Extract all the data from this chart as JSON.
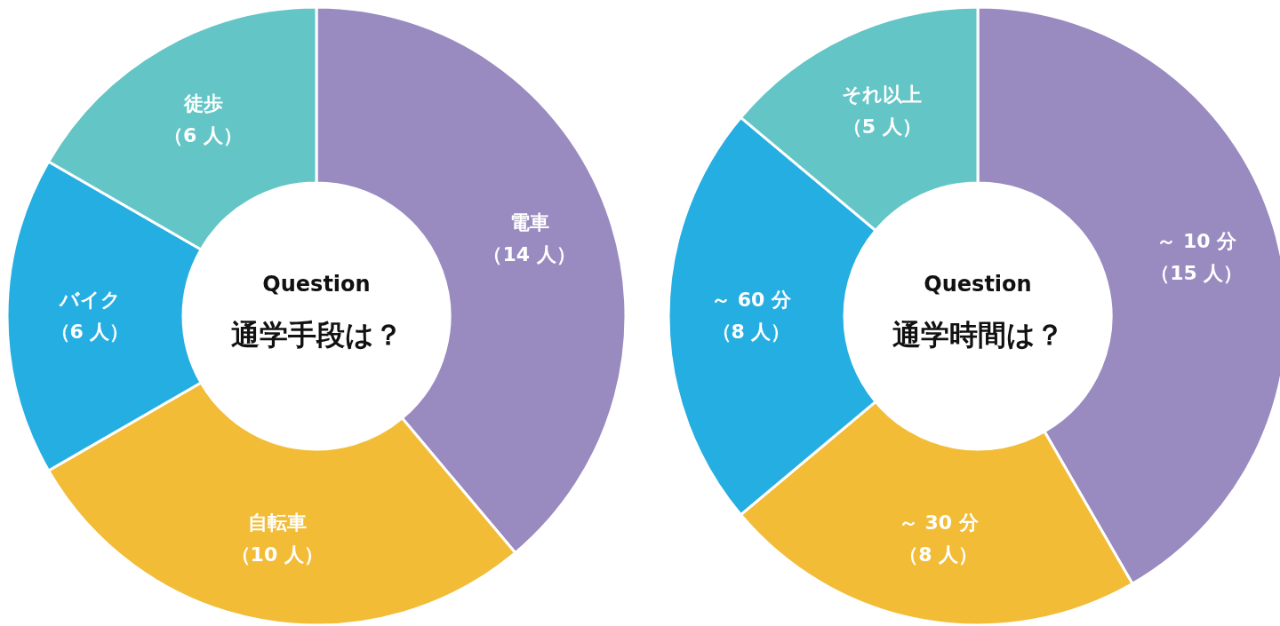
{
  "chart_data": [
    {
      "type": "donut",
      "title": "Question",
      "subtitle": "通学手段は？",
      "categories": [
        "電車",
        "自転車",
        "バイク",
        "徒歩"
      ],
      "values": [
        14,
        10,
        6,
        6
      ],
      "colors": [
        "#998ac0",
        "#f2bc37",
        "#25aee1",
        "#63c5c6"
      ],
      "value_labels": [
        "（14 人）",
        "（10 人）",
        "（6 人）",
        "（6 人）"
      ]
    },
    {
      "type": "donut",
      "title": "Question",
      "subtitle": "通学時間は？",
      "categories": [
        "～ 10 分",
        "～ 30 分",
        "～ 60 分",
        "それ以上"
      ],
      "values": [
        15,
        8,
        8,
        5
      ],
      "colors": [
        "#998ac0",
        "#f2bc37",
        "#25aee1",
        "#63c5c6"
      ],
      "value_labels": [
        "（15 人）",
        "（8 人）",
        "（8 人）",
        "（5 人）"
      ]
    }
  ]
}
